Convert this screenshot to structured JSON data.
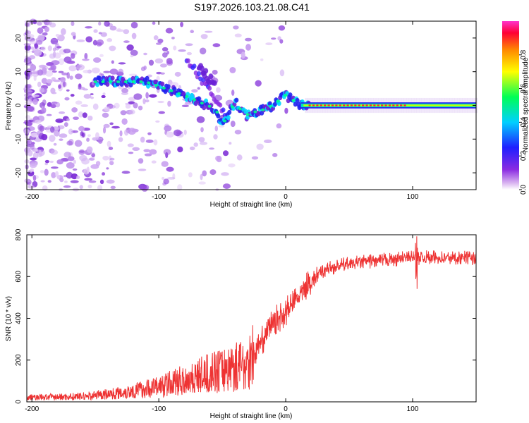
{
  "page_title": "S197.2026.103.21.08.C41",
  "colors": {
    "background": "#ffffff",
    "axis": "#000000",
    "snr_line": "#ee3333",
    "colormap": [
      "#ffffff",
      "#cc99ee",
      "#7a24d9",
      "#3322ff",
      "#00c8ff",
      "#00ff66",
      "#ffff00",
      "#ff8800",
      "#ff0033",
      "#ff33cc"
    ]
  },
  "chart_data": [
    {
      "type": "heatmap",
      "name": "spectrogram",
      "title": "S197.2026.103.21.08.C41",
      "xlabel": "Height of straight line (km)",
      "ylabel": "Frequency (Hz)",
      "xlim": [
        -204,
        150
      ],
      "ylim": [
        -25,
        25
      ],
      "xticks": [
        -200,
        -100,
        0,
        100
      ],
      "yticks": [
        -20,
        -10,
        0,
        10,
        20
      ],
      "colorbar": {
        "label": "Normalized spectral amplitude",
        "range": [
          0,
          1
        ],
        "ticks": [
          "0.0",
          "0.2",
          "0.4",
          "0.6",
          "0.8"
        ]
      },
      "ridge": [
        {
          "x": -150,
          "y": 7
        },
        {
          "x": -130,
          "y": 7
        },
        {
          "x": -110,
          "y": 7
        },
        {
          "x": -95,
          "y": 5
        },
        {
          "x": -80,
          "y": 3
        },
        {
          "x": -65,
          "y": 0.5
        },
        {
          "x": -55,
          "y": -1
        },
        {
          "x": -50,
          "y": -6
        },
        {
          "x": -40,
          "y": 1
        },
        {
          "x": -32,
          "y": -3
        },
        {
          "x": -25,
          "y": -2
        },
        {
          "x": -15,
          "y": -1
        },
        {
          "x": -5,
          "y": 1.5
        },
        {
          "x": 0,
          "y": 3
        },
        {
          "x": 10,
          "y": 0.5
        },
        {
          "x": 20,
          "y": 0
        },
        {
          "x": 80,
          "y": 0
        },
        {
          "x": 150,
          "y": 0
        }
      ]
    },
    {
      "type": "line",
      "name": "snr",
      "xlabel": "Height of straight line (km)",
      "ylabel": "SNR (10 * v/v)",
      "xlim": [
        -204,
        150
      ],
      "ylim": [
        0,
        800
      ],
      "xticks": [
        -200,
        -100,
        0,
        100
      ],
      "yticks": [
        0,
        200,
        400,
        600,
        800
      ],
      "series": [
        {
          "name": "SNR",
          "x": [
            -204,
            -180,
            -160,
            -140,
            -120,
            -100,
            -80,
            -60,
            -40,
            -30,
            -20,
            -10,
            0,
            10,
            20,
            30,
            40,
            60,
            80,
            100,
            120,
            150
          ],
          "y": [
            20,
            22,
            25,
            35,
            50,
            70,
            100,
            130,
            160,
            180,
            280,
            380,
            430,
            500,
            580,
            630,
            650,
            670,
            680,
            690,
            690,
            690
          ]
        }
      ]
    }
  ]
}
